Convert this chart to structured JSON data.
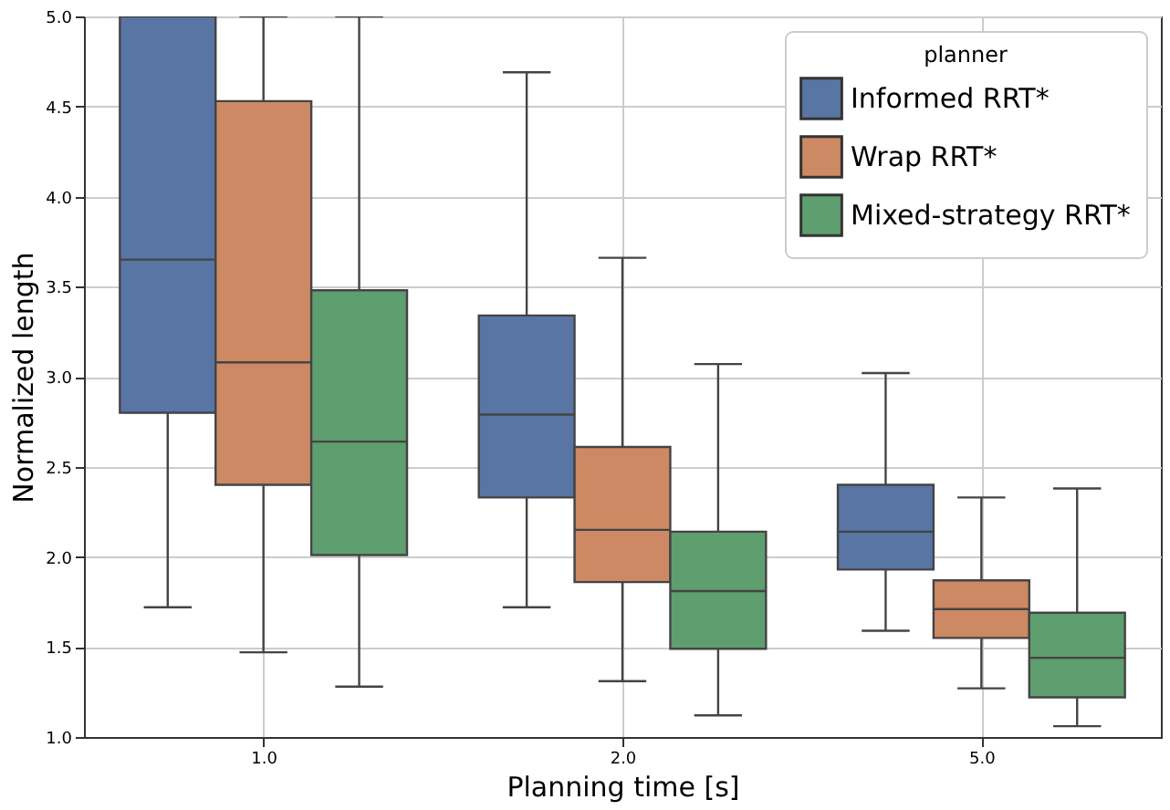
{
  "chart_data": {
    "type": "box",
    "xlabel": "Planning time [s]",
    "ylabel": "Normalized length",
    "legend_title": "planner",
    "categories": [
      "1.0",
      "2.0",
      "5.0"
    ],
    "ylim": [
      1.0,
      5.0
    ],
    "yticks": [
      {
        "value": 1.0,
        "label": "1.0"
      },
      {
        "value": 1.5,
        "label": "1.5"
      },
      {
        "value": 2.0,
        "label": "2.0"
      },
      {
        "value": 2.5,
        "label": "2.5"
      },
      {
        "value": 3.0,
        "label": "3.0"
      },
      {
        "value": 3.5,
        "label": "3.5"
      },
      {
        "value": 4.0,
        "label": "4.0"
      },
      {
        "value": 4.5,
        "label": "4.5"
      },
      {
        "value": 5.0,
        "label": "5.0"
      }
    ],
    "grid": true,
    "legend": "top right",
    "series": [
      {
        "name": "Informed RRT*",
        "color": "#5875a4",
        "boxes": [
          {
            "low": 1.72,
            "q1": 2.8,
            "median": 3.65,
            "q3": 5.0,
            "high": 5.0
          },
          {
            "low": 1.72,
            "q1": 2.33,
            "median": 2.79,
            "q3": 3.34,
            "high": 4.69
          },
          {
            "low": 1.59,
            "q1": 1.93,
            "median": 2.14,
            "q3": 2.4,
            "high": 3.02
          }
        ]
      },
      {
        "name": "Wrap RRT*",
        "color": "#cc8963",
        "boxes": [
          {
            "low": 1.47,
            "q1": 2.4,
            "median": 3.08,
            "q3": 4.53,
            "high": 5.0
          },
          {
            "low": 1.31,
            "q1": 1.86,
            "median": 2.15,
            "q3": 2.61,
            "high": 3.66
          },
          {
            "low": 1.27,
            "q1": 1.55,
            "median": 1.71,
            "q3": 1.87,
            "high": 2.33
          }
        ]
      },
      {
        "name": "Mixed-strategy RRT*",
        "color": "#5f9e6e",
        "boxes": [
          {
            "low": 1.28,
            "q1": 2.01,
            "median": 2.64,
            "q3": 3.48,
            "high": 5.0
          },
          {
            "low": 1.12,
            "q1": 1.49,
            "median": 1.81,
            "q3": 2.14,
            "high": 3.07
          },
          {
            "low": 1.06,
            "q1": 1.22,
            "median": 1.44,
            "q3": 1.69,
            "high": 2.38
          }
        ]
      }
    ]
  }
}
